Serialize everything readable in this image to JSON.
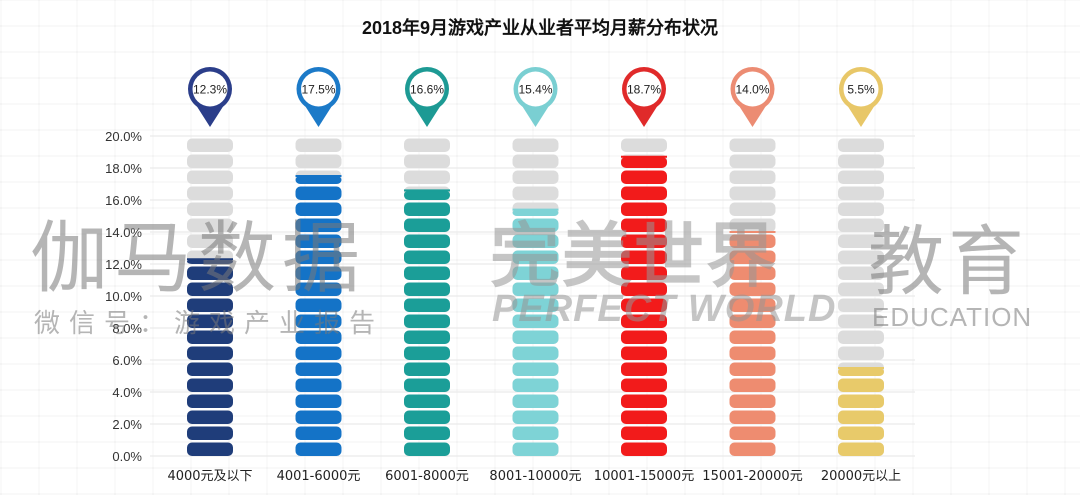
{
  "chart_data": {
    "type": "bar",
    "title": "2018年9月游戏产业从业者平均月薪分布状况",
    "categories": [
      "4000元及以下",
      "4001-6000元",
      "6001-8000元",
      "8001-10000元",
      "10001-15000元",
      "15001-20000元",
      "20000元以上"
    ],
    "values": [
      12.3,
      17.5,
      16.6,
      15.4,
      18.7,
      14.0,
      5.5
    ],
    "value_labels": [
      "12.3%",
      "17.5%",
      "16.6%",
      "15.4%",
      "18.7%",
      "14.0%",
      "5.5%"
    ],
    "colors": [
      "#1F3D7A",
      "#1473C7",
      "#1B9E98",
      "#7ED3D6",
      "#F21B1B",
      "#EE8C70",
      "#E8CA6A"
    ],
    "marker_colors": [
      "#2B3E8A",
      "#1C7AC8",
      "#1D9A94",
      "#7ACFD2",
      "#E02A2A",
      "#EC8C73",
      "#E8C768"
    ],
    "ylim": [
      0,
      20
    ],
    "yticks": [
      "0.0%",
      "2.0%",
      "4.0%",
      "6.0%",
      "8.0%",
      "10.0%",
      "12.0%",
      "14.0%",
      "16.0%",
      "18.0%",
      "20.0%"
    ],
    "grid": true,
    "legend": "none"
  },
  "watermarks": {
    "left_main": "伽马数据",
    "left_sub": "微信号：游戏产业报告",
    "mid_main": "完美世界",
    "mid_sub": "PERFECT WORLD",
    "right_main": "教育",
    "right_sub": "EDUCATION"
  }
}
